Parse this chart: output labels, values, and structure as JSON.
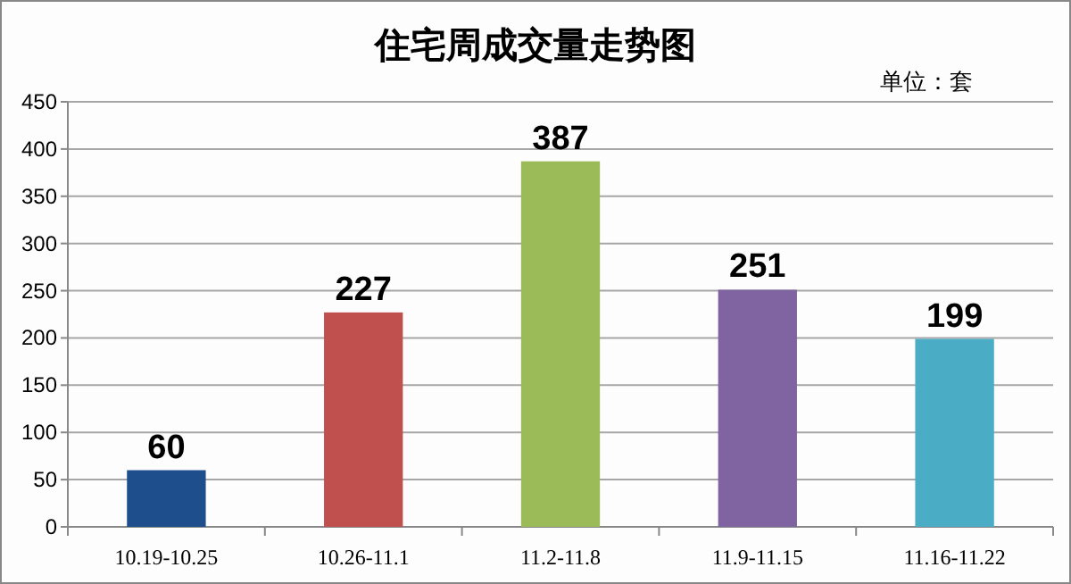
{
  "chart_data": {
    "type": "bar",
    "title": "住宅周成交量走势图",
    "annotations": [
      "单位：套"
    ],
    "categories": [
      "10.19-10.25",
      "10.26-11.1",
      "11.2-11.8",
      "11.9-11.15",
      "11.16-11.22"
    ],
    "values": [
      60,
      227,
      387,
      251,
      199
    ],
    "colors": [
      "#1f4e8c",
      "#c0504d",
      "#9bbb59",
      "#8064a2",
      "#4bacc6"
    ],
    "ylim": [
      0,
      450
    ],
    "yticks": [
      0,
      50,
      100,
      150,
      200,
      250,
      300,
      350,
      400,
      450
    ],
    "grid": "y",
    "data_labels": true
  }
}
